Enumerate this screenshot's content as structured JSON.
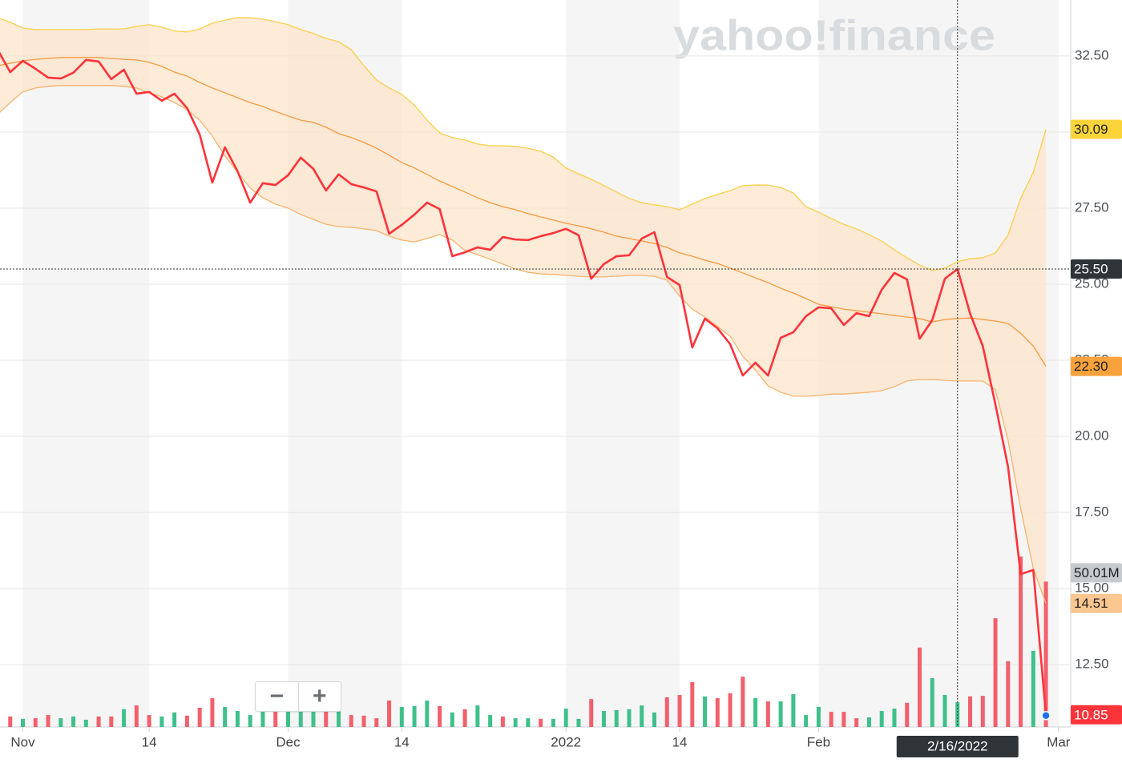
{
  "chart_data": {
    "type": "line",
    "watermark": "yahoo!finance",
    "zoom_controls": [
      "−",
      "+"
    ],
    "categories": [
      null,
      null,
      "Nov",
      null,
      null,
      null,
      null,
      null,
      null,
      null,
      null,
      null,
      "14",
      null,
      null,
      null,
      null,
      null,
      null,
      null,
      null,
      null,
      null,
      "Dec",
      null,
      null,
      null,
      null,
      null,
      null,
      null,
      null,
      "14",
      null,
      null,
      null,
      null,
      null,
      null,
      null,
      null,
      null,
      null,
      null,
      null,
      "2022",
      null,
      null,
      null,
      null,
      null,
      null,
      null,
      null,
      "14",
      null,
      null,
      null,
      null,
      null,
      null,
      null,
      null,
      null,
      null,
      "Feb",
      null,
      null,
      null,
      null,
      null,
      null,
      null,
      null,
      null,
      null,
      null,
      null,
      null,
      null,
      null,
      null,
      null,
      null,
      "Mar"
    ],
    "ylim": [
      10.45,
      34.34
    ],
    "yticks": [
      {
        "value": 12.5,
        "label": "12.50"
      },
      {
        "value": 15,
        "label": "15.00"
      },
      {
        "value": 17.5,
        "label": "17.50"
      },
      {
        "value": 20,
        "label": "20.00"
      },
      {
        "value": 22.5,
        "label": "22.50"
      },
      {
        "value": 25,
        "label": "25.00"
      },
      {
        "value": 27.5,
        "label": "27.50"
      },
      {
        "value": 30,
        "label": "30.00"
      },
      {
        "value": 32.5,
        "label": "32.50"
      }
    ],
    "y2lim": [
      0,
      250
    ],
    "grid": true,
    "crosshair": {
      "label": "2/16/2022",
      "value": 25.5,
      "value_label": "25.50",
      "color": "#2f3438"
    },
    "series": [
      {
        "type": "bar",
        "axis": "y2",
        "last_label": "50.01M",
        "label_color": "#c8cbce",
        "values": [
          3.6,
          3.6,
          2.8,
          3.0,
          4.1,
          3.0,
          3.6,
          2.5,
          3.6,
          3.6,
          6.1,
          7.4,
          4.1,
          3.6,
          5.0,
          3.9,
          6.6,
          9.9,
          6.9,
          5.5,
          4.1,
          5.5,
          6.6,
          8.5,
          5.5,
          5.8,
          6.3,
          10.2,
          4.1,
          3.9,
          3.0,
          9.1,
          6.9,
          7.2,
          9.1,
          7.2,
          5.0,
          6.1,
          7.4,
          4.1,
          3.6,
          3.0,
          3.0,
          2.8,
          2.8,
          6.3,
          2.8,
          9.6,
          5.5,
          5.8,
          6.1,
          7.4,
          5.0,
          10.2,
          11.0,
          15.4,
          10.5,
          9.9,
          11.6,
          17.3,
          9.9,
          8.8,
          8.8,
          11.3,
          4.1,
          6.9,
          5.2,
          5.2,
          3.0,
          3.3,
          5.5,
          6.3,
          8.3,
          27.3,
          16.8,
          11.0,
          8.5,
          10.5,
          10.7,
          37.4,
          22.6,
          58.6,
          26.2,
          50.01,
          null
        ],
        "colors": [
          "#f2606b",
          "#f2606b",
          "#3fc08a",
          "#f2606b",
          "#f2606b",
          "#3fc08a",
          "#3fc08a",
          "#3fc08a",
          "#f2606b",
          "#f2606b",
          "#3fc08a",
          "#f2606b",
          "#f2606b",
          "#3fc08a",
          "#3fc08a",
          "#f2606b",
          "#f2606b",
          "#f2606b",
          "#3fc08a",
          "#3fc08a",
          "#3fc08a",
          "#3fc08a",
          "#f2606b",
          "#3fc08a",
          "#3fc08a",
          "#3fc08a",
          "#f2606b",
          "#3fc08a",
          "#f2606b",
          "#f2606b",
          "#f2606b",
          "#f2606b",
          "#3fc08a",
          "#3fc08a",
          "#3fc08a",
          "#f2606b",
          "#3fc08a",
          "#f2606b",
          "#3fc08a",
          "#3fc08a",
          "#f2606b",
          "#3fc08a",
          "#3fc08a",
          "#f2606b",
          "#3fc08a",
          "#3fc08a",
          "#3fc08a",
          "#f2606b",
          "#3fc08a",
          "#3fc08a",
          "#3fc08a",
          "#3fc08a",
          "#3fc08a",
          "#f2606b",
          "#f2606b",
          "#f2606b",
          "#3fc08a",
          "#f2606b",
          "#f2606b",
          "#f2606b",
          "#3fc08a",
          "#f2606b",
          "#3fc08a",
          "#3fc08a",
          "#3fc08a",
          "#3fc08a",
          "#f2606b",
          "#f2606b",
          "#f2606b",
          "#3fc08a",
          "#3fc08a",
          "#3fc08a",
          "#f2606b",
          "#f2606b",
          "#3fc08a",
          "#3fc08a",
          "#3fc08a",
          "#f2606b",
          "#f2606b",
          "#f2606b",
          "#f2606b",
          "#f2606b",
          "#3fc08a",
          "#f2606b",
          null
        ]
      },
      {
        "type": "band-upper",
        "color": "#fbd04a",
        "last_label": "30.09",
        "label_color": "#fbd43a",
        "values": [
          33.76,
          33.61,
          33.42,
          33.37,
          33.37,
          33.37,
          33.37,
          33.37,
          33.39,
          33.39,
          33.39,
          33.47,
          33.53,
          33.45,
          33.32,
          33.29,
          33.39,
          33.58,
          33.68,
          33.76,
          33.76,
          33.71,
          33.63,
          33.53,
          33.37,
          33.24,
          33.08,
          32.97,
          32.71,
          32.18,
          31.71,
          31.45,
          31.24,
          30.89,
          30.39,
          29.97,
          29.82,
          29.74,
          29.61,
          29.55,
          29.55,
          29.53,
          29.47,
          29.37,
          29.18,
          28.82,
          28.63,
          28.45,
          28.24,
          28.03,
          27.82,
          27.68,
          27.61,
          27.55,
          27.45,
          27.63,
          27.82,
          27.95,
          28.08,
          28.24,
          28.26,
          28.26,
          28.18,
          28.0,
          27.55,
          27.37,
          27.16,
          26.97,
          26.82,
          26.63,
          26.42,
          26.13,
          25.87,
          25.63,
          25.45,
          25.53,
          25.74,
          25.84,
          25.87,
          26.03,
          26.61,
          27.82,
          28.68,
          30.09,
          null
        ]
      },
      {
        "type": "band-middle",
        "color": "#f59a3f",
        "last_label": "22.30",
        "label_color": "#f9a23c",
        "values": [
          32.18,
          32.26,
          32.34,
          32.39,
          32.42,
          32.45,
          32.45,
          32.45,
          32.45,
          32.42,
          32.39,
          32.37,
          32.29,
          32.16,
          31.97,
          31.84,
          31.63,
          31.45,
          31.29,
          31.13,
          30.97,
          30.84,
          30.68,
          30.53,
          30.39,
          30.32,
          30.16,
          29.95,
          29.82,
          29.66,
          29.47,
          29.24,
          29.0,
          28.82,
          28.61,
          28.39,
          28.21,
          28.03,
          27.84,
          27.68,
          27.55,
          27.45,
          27.32,
          27.21,
          27.11,
          27.0,
          26.92,
          26.82,
          26.71,
          26.58,
          26.5,
          26.42,
          26.34,
          26.21,
          26.03,
          25.92,
          25.79,
          25.68,
          25.53,
          25.37,
          25.21,
          25.05,
          24.87,
          24.71,
          24.53,
          24.34,
          24.26,
          24.18,
          24.13,
          24.08,
          24.03,
          23.97,
          23.92,
          23.87,
          23.76,
          23.84,
          23.87,
          23.89,
          23.84,
          23.79,
          23.71,
          23.39,
          22.97,
          22.3,
          null
        ]
      },
      {
        "type": "band-lower",
        "color": "#f7b46c",
        "last_label": "14.51",
        "label_color": "#fcc690",
        "values": [
          30.58,
          30.97,
          31.32,
          31.45,
          31.5,
          31.53,
          31.53,
          31.53,
          31.53,
          31.53,
          31.5,
          31.45,
          31.29,
          31.16,
          30.97,
          30.74,
          30.39,
          29.87,
          29.21,
          28.68,
          28.16,
          27.84,
          27.63,
          27.5,
          27.29,
          27.13,
          26.97,
          26.89,
          26.87,
          26.82,
          26.76,
          26.58,
          26.45,
          26.39,
          26.5,
          26.63,
          26.45,
          26.11,
          25.97,
          25.82,
          25.66,
          25.5,
          25.39,
          25.34,
          25.32,
          25.29,
          25.26,
          25.24,
          25.24,
          25.26,
          25.29,
          25.29,
          25.26,
          25.13,
          24.61,
          24.18,
          23.92,
          23.61,
          23.29,
          22.63,
          22.18,
          21.66,
          21.45,
          21.32,
          21.32,
          21.34,
          21.39,
          21.39,
          21.42,
          21.45,
          21.5,
          21.63,
          21.82,
          21.87,
          21.87,
          21.84,
          21.82,
          21.82,
          21.82,
          21.53,
          19.87,
          17.63,
          15.66,
          14.51,
          null
        ]
      },
      {
        "type": "price",
        "color": "#ff333a",
        "last_label": "10.85",
        "label_color": "#ff333a",
        "marker_color": "#1e73e8",
        "values": [
          32.71,
          31.97,
          32.34,
          32.08,
          31.79,
          31.76,
          31.95,
          32.37,
          32.32,
          31.74,
          32.05,
          31.26,
          31.32,
          31.03,
          31.26,
          30.79,
          29.92,
          28.34,
          29.5,
          28.71,
          27.68,
          28.32,
          28.26,
          28.58,
          29.16,
          28.79,
          28.08,
          28.61,
          28.29,
          28.18,
          28.05,
          26.66,
          26.95,
          27.29,
          27.68,
          27.47,
          25.92,
          26.05,
          26.21,
          26.13,
          26.55,
          26.47,
          26.45,
          26.58,
          26.68,
          26.82,
          26.61,
          25.18,
          25.66,
          25.92,
          25.95,
          26.5,
          26.71,
          25.24,
          24.97,
          22.92,
          23.87,
          23.55,
          23.03,
          22.0,
          22.42,
          22.0,
          23.24,
          23.42,
          23.95,
          24.24,
          24.21,
          23.66,
          24.05,
          23.95,
          24.82,
          25.37,
          25.16,
          23.21,
          23.82,
          25.18,
          25.5,
          24.03,
          22.97,
          21.05,
          19.0,
          15.47,
          15.61,
          10.85,
          null
        ]
      }
    ]
  }
}
